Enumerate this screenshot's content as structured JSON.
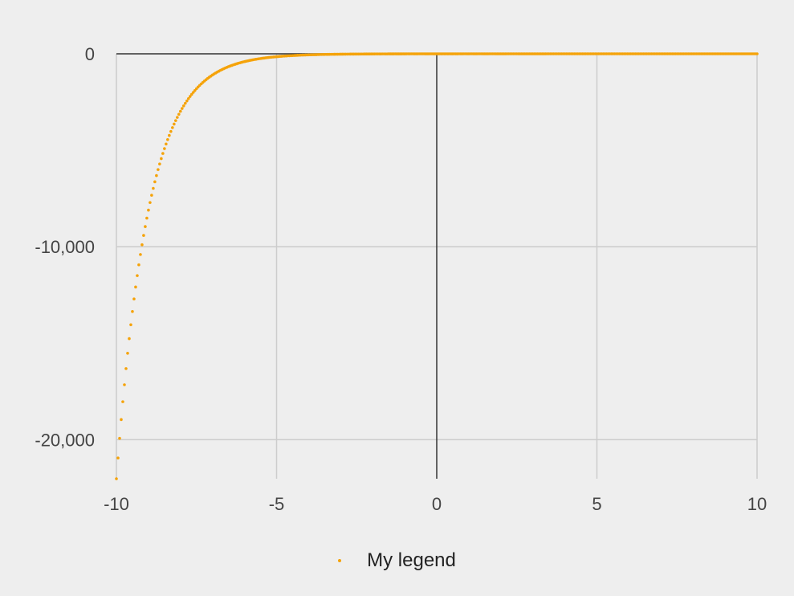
{
  "chart_data": {
    "type": "scatter",
    "function": "-exp(-x)",
    "xlim": [
      -10,
      10
    ],
    "ylim": [
      -22026,
      0
    ],
    "x_ticks": [
      -10,
      -5,
      0,
      5,
      10
    ],
    "y_ticks": [
      0,
      -10000,
      -20000
    ],
    "x_tick_labels": [
      "-10",
      "-5",
      "0",
      "5",
      "10"
    ],
    "y_tick_labels": [
      "0",
      "-10,000",
      "-20,000"
    ],
    "grid": true,
    "legend_position": "bottom",
    "series": [
      {
        "name": "My legend",
        "color": "#f5a30a",
        "x_range": [
          -10,
          10
        ],
        "point_count": 401
      }
    ]
  },
  "legend": {
    "label": "My legend"
  }
}
